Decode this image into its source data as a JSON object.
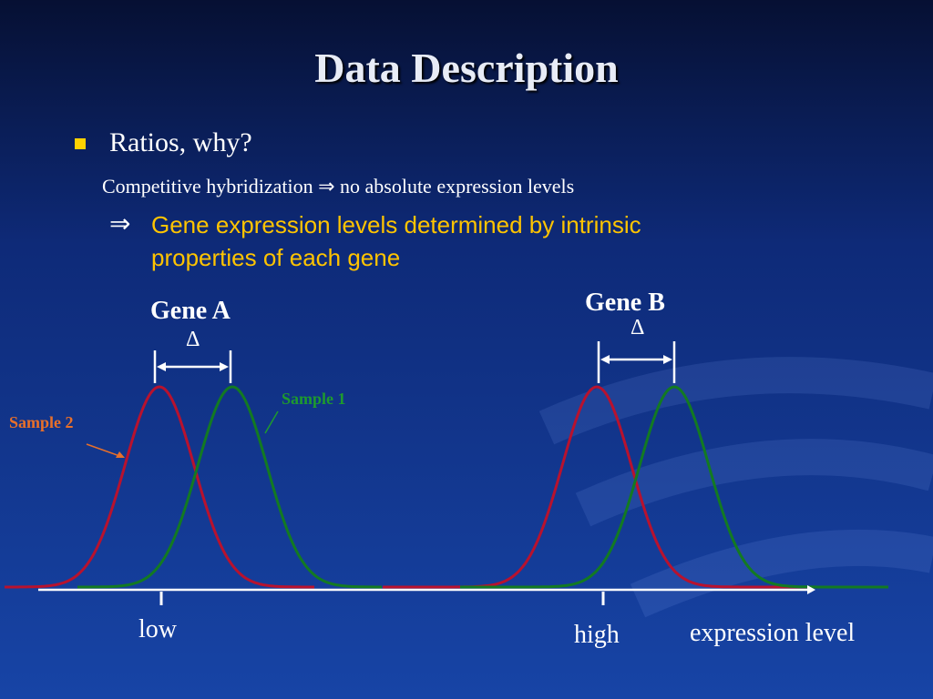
{
  "slide": {
    "title": "Data Description",
    "bullet": "Ratios, why?",
    "line1": "Competitive hybridization ⇒ no absolute expression levels",
    "implication_marker": "⇒",
    "implication": "Gene expression levels determined by intrinsic properties of each gene",
    "diagram": {
      "gene_a": "Gene A",
      "gene_a_delta": "Δ",
      "gene_b": "Gene B",
      "gene_b_delta": "Δ",
      "sample_1": "Sample 1",
      "sample_2": "Sample 2",
      "low": "low",
      "high": "high",
      "axis_label": "expression level"
    }
  }
}
